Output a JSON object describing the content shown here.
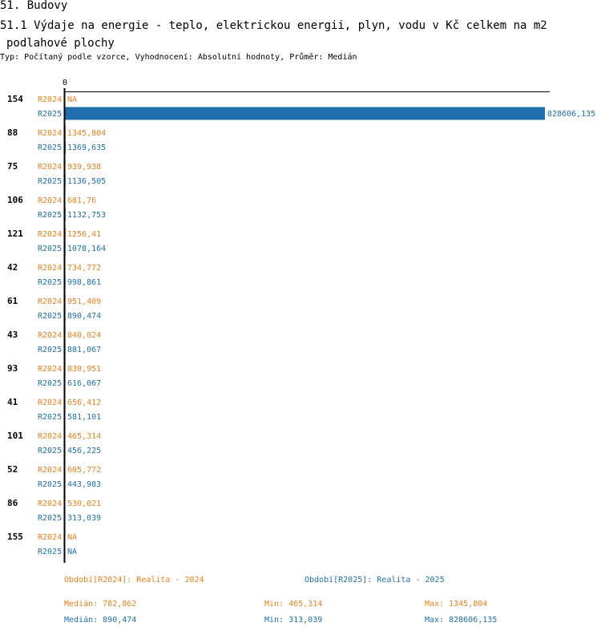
{
  "header": {
    "section": "51. Budovy",
    "title_line1": "51.1 Výdaje na energie - teplo, elektrickou energii, plyn, vodu v Kč celkem na m2",
    "title_line2": "podlahové plochy",
    "subtitle": "Typ: Počítaný podle vzorce, Vyhodnocení: Absolutní hodnoty, Průměr: Medián"
  },
  "colors": {
    "r2024": "#e8821c",
    "r2025": "#1f70ad",
    "axis": "#000000"
  },
  "chart_data": {
    "type": "bar",
    "orientation": "horizontal",
    "title": "51.1 Výdaje na energie - teplo, elektrickou energii, plyn, vodu v Kč celkem na m2 podlahové plochy",
    "axis_tick_labels": [
      "0"
    ],
    "xlim": [
      0,
      828606.135
    ],
    "categories": [
      "154",
      "88",
      "75",
      "106",
      "121",
      "42",
      "61",
      "43",
      "93",
      "41",
      "101",
      "52",
      "86",
      "155"
    ],
    "series": [
      {
        "name": "R2024",
        "values": [
          null,
          1345.804,
          939.938,
          681.76,
          1256.41,
          734.772,
          951.409,
          840.024,
          830.951,
          656.412,
          465.314,
          605.772,
          530.021,
          null
        ],
        "labels": [
          "NA",
          "1345,804",
          "939,938",
          "681,76",
          "1256,41",
          "734,772",
          "951,409",
          "840,024",
          "830,951",
          "656,412",
          "465,314",
          "605,772",
          "530,021",
          "NA"
        ]
      },
      {
        "name": "R2025",
        "values": [
          828606.135,
          1369.635,
          1136.505,
          1132.753,
          1078.164,
          998.861,
          890.474,
          881.067,
          616.067,
          581.101,
          456.225,
          443.983,
          313.039,
          null
        ],
        "labels": [
          "828606,135",
          "1369,635",
          "1136,505",
          "1132,753",
          "1078,164",
          "998,861",
          "890,474",
          "881,067",
          "616,067",
          "581,101",
          "456,225",
          "443,983",
          "313,039",
          "NA"
        ]
      }
    ]
  },
  "legend": {
    "r2024": "Období[R2024]: Realita - 2024",
    "r2025": "Období[R2025]: Realita - 2025"
  },
  "stats": {
    "r2024": {
      "median": "Medián: 782,862",
      "min": "Min: 465,314",
      "max": "Max: 1345,804"
    },
    "r2025": {
      "median": "Medián: 890,474",
      "min": "Min: 313,039",
      "max": "Max: 828606,135"
    }
  }
}
